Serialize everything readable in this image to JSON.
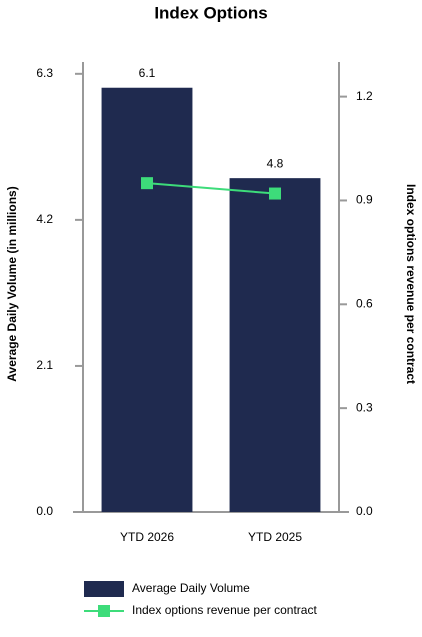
{
  "chart_data": {
    "type": "bar",
    "title": "Index Options",
    "ylabel": "Average Daily Volume (in millions)",
    "y2label": "Index options revenue per contract",
    "categories": [
      "YTD 2026",
      "YTD 2025"
    ],
    "series": [
      {
        "name": "Average Daily Volume",
        "type": "bar",
        "color": "#1f2a4f",
        "values": [
          6.1,
          4.8
        ],
        "show_labels": true
      },
      {
        "name": "Index options revenue per contract",
        "type": "line",
        "axis": "y2",
        "color": "#3ddc7a",
        "values": [
          0.95,
          0.92
        ]
      }
    ],
    "ylim": [
      0,
      6.47
    ],
    "yticks": [
      {
        "value": 0,
        "label": "0.0"
      },
      2.1,
      4.2,
      6.3
    ],
    "y2lim": [
      0,
      1.3
    ],
    "y2ticks": [
      {
        "value": 0,
        "label": "0.0"
      },
      0.3,
      0.6,
      0.9,
      1.2
    ],
    "grid": false
  }
}
